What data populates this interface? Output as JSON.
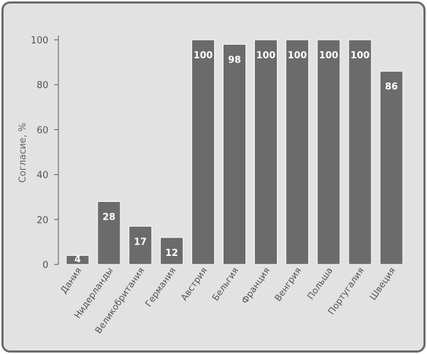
{
  "chart_data": {
    "type": "bar",
    "ylabel": "Согласие, %",
    "ylim": [
      0,
      100
    ],
    "yticks": [
      0,
      20,
      40,
      60,
      80,
      100
    ],
    "categories": [
      "Дания",
      "Нидерланды",
      "Великобритания",
      "Германия",
      "Австрия",
      "Бельгия",
      "Франция",
      "Венгрия",
      "Польша",
      "Португалия",
      "Швеция"
    ],
    "values": [
      4,
      28,
      17,
      12,
      100,
      98,
      100,
      100,
      100,
      100,
      86
    ],
    "value_labels": [
      "4",
      "28",
      "17",
      "12",
      "100",
      "98",
      "100",
      "100",
      "100",
      "100",
      "86"
    ],
    "grid": false,
    "colors": {
      "bar": "#6b6b6b",
      "bar_edge": "#ffffff",
      "axis": "#555555",
      "background": "#e2e2e2",
      "frame": "#6b6b6b"
    }
  }
}
